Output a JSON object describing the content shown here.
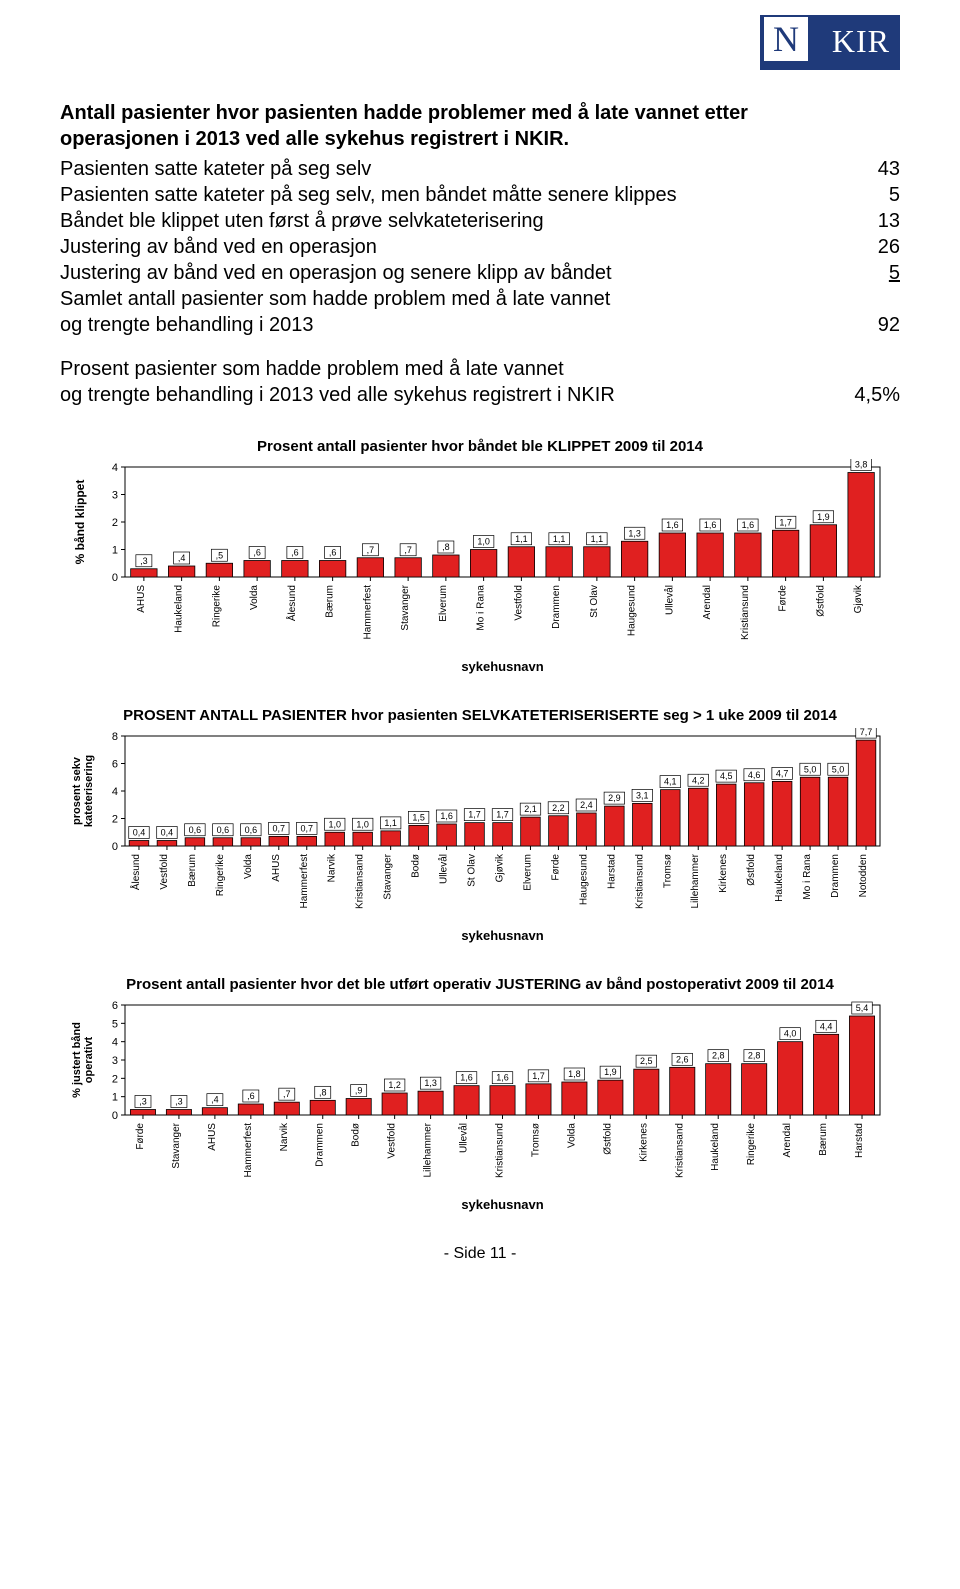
{
  "logo": {
    "initial": "N",
    "rest": "KIR"
  },
  "intro_line1": "Antall pasienter hvor pasienten hadde problemer med å late vannet etter",
  "intro_line2": "operasjonen i 2013 ved alle sykehus registrert i NKIR.",
  "rows": [
    {
      "label": "Pasienten satte kateter på seg selv",
      "val": "43"
    },
    {
      "label": "Pasienten satte kateter på seg selv, men båndet måtte senere klippes",
      "val": "5"
    },
    {
      "label": "Båndet ble klippet uten først å prøve selvkateterisering",
      "val": "13"
    },
    {
      "label": "Justering av bånd ved en operasjon",
      "val": "26"
    },
    {
      "label": "Justering av bånd ved en operasjon og senere klipp av båndet",
      "val": "5",
      "underline": true
    },
    {
      "label": "Samlet antall pasienter som hadde problem med å late vannet",
      "val": ""
    },
    {
      "label": "og trengte behandling i 2013",
      "val": "92"
    }
  ],
  "percent_block": {
    "line1": "Prosent pasienter som hadde problem med å late vannet",
    "line2": "og trengte behandling i 2013 ved alle sykehus registrert i NKIR",
    "val": "4,5%"
  },
  "chart1": {
    "title": "Prosent antall pasienter hvor båndet ble KLIPPET 2009 til 2014",
    "ylabel": "% bånd klippet",
    "xlabel": "sykehusnavn",
    "ymax": 4,
    "ytick": 1,
    "bar_color": "#e02020",
    "bg": "#ffffff",
    "font_size": 10,
    "categories": [
      "AHUS",
      "Haukeland",
      "Ringerike",
      "Volda",
      "Ålesund",
      "Bærum",
      "Hammerfest",
      "Stavanger",
      "Elverum",
      "Mo i Rana",
      "Vestfold",
      "Drammen",
      "St Olav",
      "Haugesund",
      "Ullevål",
      "Arendal",
      "Kristiansund",
      "Førde",
      "Østfold",
      "Gjøvik"
    ],
    "values": [
      0.3,
      0.4,
      0.5,
      0.6,
      0.6,
      0.6,
      0.7,
      0.7,
      0.8,
      1.0,
      1.1,
      1.1,
      1.1,
      1.3,
      1.6,
      1.6,
      1.6,
      1.7,
      1.9,
      3.8
    ],
    "labels": [
      ",3",
      ",4",
      ",5",
      ",6",
      ",6",
      ",6",
      ",7",
      ",7",
      ",8",
      "1,0",
      "1,1",
      "1,1",
      "1,1",
      "1,3",
      "1,6",
      "1,6",
      "1,6",
      "1,7",
      "1,9",
      "3,8"
    ]
  },
  "chart2": {
    "title": "PROSENT ANTALL PASIENTER hvor pasienten SELVKATETERISERISERTE seg > 1 uke 2009 til 2014",
    "ylabel_line1": "prosent sekv",
    "ylabel_line2": "kateterisering",
    "xlabel": "sykehusnavn",
    "ymax": 8,
    "ytick": 2,
    "bar_color": "#e02020",
    "bg": "#ffffff",
    "font_size": 10,
    "categories": [
      "Ålesund",
      "Vestfold",
      "Bærum",
      "Ringerike",
      "Volda",
      "AHUS",
      "Hammerfest",
      "Narvik",
      "Kristiansand",
      "Stavanger",
      "Bodø",
      "Ullevål",
      "St Olav",
      "Gjøvik",
      "Elverum",
      "Førde",
      "Haugesund",
      "Harstad",
      "Kristiansund",
      "Tromsø",
      "Lillehammer",
      "Kirkenes",
      "Østfold",
      "Haukeland",
      "Mo i Rana",
      "Drammen",
      "Notodden"
    ],
    "values": [
      0.4,
      0.4,
      0.6,
      0.6,
      0.6,
      0.7,
      0.7,
      1.0,
      1.0,
      1.1,
      1.5,
      1.6,
      1.7,
      1.7,
      2.1,
      2.2,
      2.4,
      2.9,
      3.1,
      4.1,
      4.2,
      4.5,
      4.6,
      4.7,
      5.0,
      5.0,
      7.7
    ],
    "labels": [
      "0,4",
      "0,4",
      "0,6",
      "0,6",
      "0,6",
      "0,7",
      "0,7",
      "1,0",
      "1,0",
      "1,1",
      "1,5",
      "1,6",
      "1,7",
      "1,7",
      "2,1",
      "2,2",
      "2,4",
      "2,9",
      "3,1",
      "4,1",
      "4,2",
      "4,5",
      "4,6",
      "4,7",
      "5,0",
      "5,0",
      "7,7"
    ]
  },
  "chart3": {
    "title": "Prosent antall pasienter hvor det ble utført operativ JUSTERING av bånd postoperativt 2009 til 2014",
    "ylabel_line1": "% justert bånd",
    "ylabel_line2": "operativt",
    "xlabel": "sykehusnavn",
    "ymax": 6,
    "ytick": 1,
    "bar_color": "#e02020",
    "bg": "#ffffff",
    "font_size": 10,
    "categories": [
      "Førde",
      "Stavanger",
      "AHUS",
      "Hammerfest",
      "Narvik",
      "Drammen",
      "Bodø",
      "Vestfold",
      "Lillehammer",
      "Ullevål",
      "Kristiansund",
      "Tromsø",
      "Volda",
      "Østfold",
      "Kirkenes",
      "Kristiansand",
      "Haukeland",
      "Ringerike",
      "Arendal",
      "Bærum",
      "Harstad"
    ],
    "values": [
      0.3,
      0.3,
      0.4,
      0.6,
      0.7,
      0.8,
      0.9,
      1.2,
      1.3,
      1.6,
      1.6,
      1.7,
      1.8,
      1.9,
      2.5,
      2.6,
      2.8,
      2.8,
      4.0,
      4.4,
      5.4
    ],
    "labels": [
      ",3",
      ",3",
      ",4",
      ",6",
      ",7",
      ",8",
      ",9",
      "1,2",
      "1,3",
      "1,6",
      "1,6",
      "1,7",
      "1,8",
      "1,9",
      "2,5",
      "2,6",
      "2,8",
      "2,8",
      "4,0",
      "4,4",
      "5,4"
    ]
  },
  "footer": "- Side 11 -"
}
